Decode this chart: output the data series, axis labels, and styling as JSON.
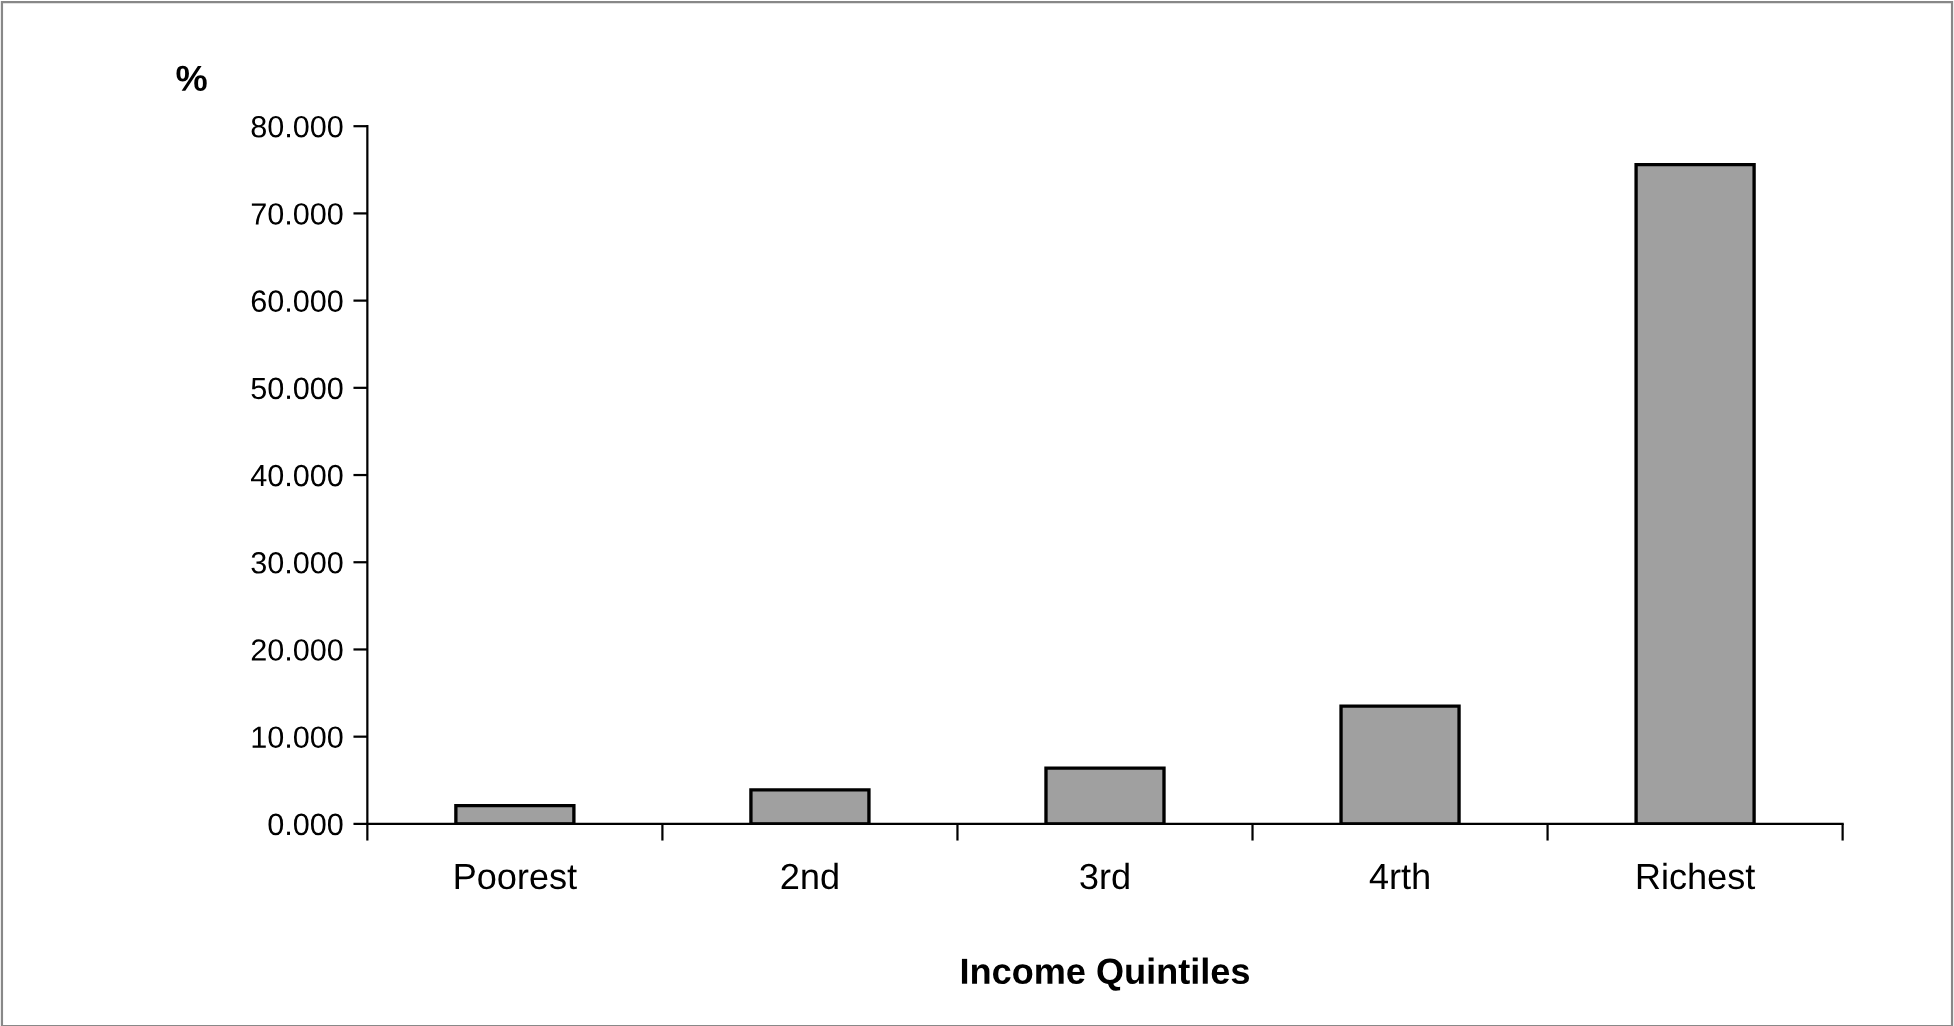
{
  "chart_data": {
    "type": "bar",
    "xlabel": "Income Quintiles",
    "ylabel": "%",
    "categories": [
      "Poorest",
      "2nd",
      "3rd",
      "4rth",
      "Richest"
    ],
    "values": [
      2.1,
      3.9,
      6.4,
      13.5,
      75.6
    ],
    "color": "#a0a0a0",
    "ylim": [
      0,
      80
    ],
    "yticks": [
      {
        "value": 0,
        "label": "0.000"
      },
      {
        "value": 10,
        "label": "10.000"
      },
      {
        "value": 20,
        "label": "20.000"
      },
      {
        "value": 30,
        "label": "30.000"
      },
      {
        "value": 40,
        "label": "40.000"
      },
      {
        "value": 50,
        "label": "50.000"
      },
      {
        "value": 60,
        "label": "60.000"
      },
      {
        "value": 70,
        "label": "70.000"
      },
      {
        "value": 80,
        "label": "80.000"
      }
    ],
    "grid": false,
    "legend": false
  }
}
